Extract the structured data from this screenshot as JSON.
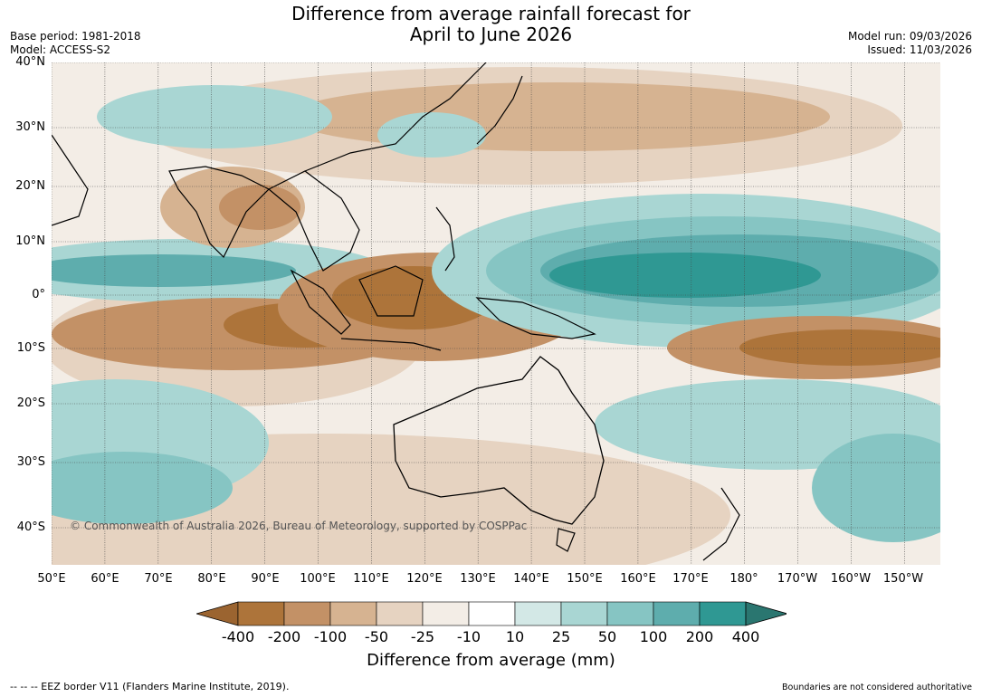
{
  "title_line1": "Difference from average rainfall forecast for",
  "title_line2": "April to June 2026",
  "base_period": "Base period: 1981-2018",
  "model": "Model: ACCESS-S2",
  "model_run": "Model run: 09/03/2026",
  "issued": "Issued: 11/03/2026",
  "copyright": "© Commonwealth of Australia 2026, Bureau of Meteorology, supported by COSPPac",
  "footer_left": "--  --  -- EEZ border V11 (Flanders Marine Institute, 2019).",
  "footer_right": "Boundaries are not considered authoritative",
  "lat_labels": [
    "40°N",
    "30°N",
    "20°N",
    "10°N",
    "0°",
    "10°S",
    "20°S",
    "30°S",
    "40°S"
  ],
  "lon_labels": [
    "50°E",
    "60°E",
    "70°E",
    "80°E",
    "90°E",
    "100°E",
    "110°E",
    "120°E",
    "130°E",
    "140°E",
    "150°E",
    "160°E",
    "170°E",
    "180°",
    "170°W",
    "160°W",
    "150°W"
  ],
  "colorbar": {
    "title": "Difference from average (mm)",
    "ticks": [
      "-400",
      "-200",
      "-100",
      "-50",
      "-25",
      "-10",
      "10",
      "25",
      "50",
      "100",
      "200",
      "400"
    ],
    "colors": [
      "#9b6430",
      "#ad743a",
      "#c39166",
      "#d6b391",
      "#e6d3c1",
      "#f3ede6",
      "#ffffff",
      "#d3e8e6",
      "#a9d6d3",
      "#86c5c3",
      "#5eadad",
      "#2f9893",
      "#2a7670"
    ]
  }
}
